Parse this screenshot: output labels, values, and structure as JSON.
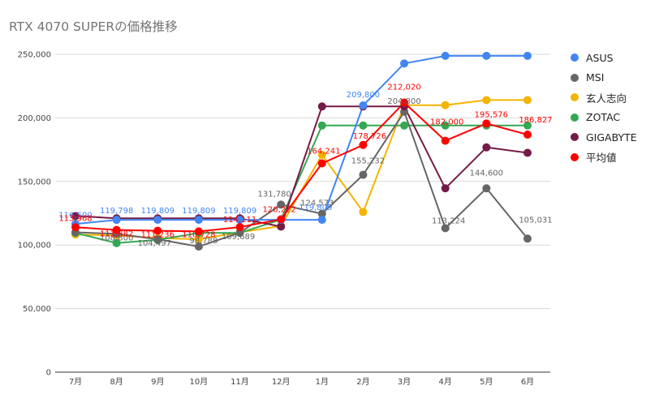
{
  "chart_data": {
    "type": "line",
    "title": "RTX 4070 SUPERの価格推移",
    "xlabel": "",
    "ylabel": "",
    "ylim": [
      0,
      250000
    ],
    "y_ticks": [
      "0",
      "50,000",
      "100,000",
      "150,000",
      "200,000",
      "250,000"
    ],
    "y_tick_values": [
      0,
      50000,
      100000,
      150000,
      200000,
      250000
    ],
    "grid": true,
    "legend_position": "right",
    "categories": [
      "7月",
      "8月",
      "9月",
      "10月",
      "11月",
      "12月",
      "1月",
      "2月",
      "3月",
      "4月",
      "5月",
      "6月"
    ],
    "series": [
      {
        "name": "ASUS",
        "color": "#4285f4",
        "values": [
          116500,
          119798,
          119809,
          119809,
          119809,
          119809,
          119809,
          209800,
          242800,
          248800,
          248800,
          248800
        ],
        "labels": [
          "116,500",
          "119,798",
          "119,809",
          "119,809",
          "119,809",
          "",
          "119,809",
          "209,800",
          "",
          "",
          "",
          ""
        ]
      },
      {
        "name": "MSI",
        "color": "#666666",
        "values": [
          110000,
          108800,
          104497,
          98788,
          109689,
          131780,
          124573,
          155232,
          204800,
          113224,
          144600,
          105031
        ],
        "labels": [
          "",
          "108,800",
          "104,497",
          "98,788",
          "109,689",
          "131,780",
          "124,573",
          "155,232",
          "204,800",
          "113,224",
          "144,600",
          "105,031"
        ]
      },
      {
        "name": "玄人志向",
        "color": "#f4b400",
        "values": [
          108300,
          107500,
          105500,
          104500,
          110000,
          115000,
          171000,
          126000,
          210000,
          210000,
          214000,
          214000
        ],
        "labels": [
          "",
          "",
          "",
          "",
          "",
          "",
          "",
          "",
          "",
          "",
          "",
          ""
        ]
      },
      {
        "name": "ZOTAC",
        "color": "#34a853",
        "values": [
          109500,
          101500,
          104000,
          109500,
          109500,
          120000,
          194000,
          194000,
          194000,
          194000,
          194000,
          194000
        ],
        "labels": [
          "",
          "",
          "",
          "",
          "",
          "",
          "",
          "",
          "",
          "",
          "",
          ""
        ]
      },
      {
        "name": "GIGABYTE",
        "color": "#741b47",
        "values": [
          122800,
          121000,
          121000,
          121000,
          121000,
          114500,
          209000,
          209000,
          209000,
          144600,
          176800,
          172500
        ],
        "labels": [
          "",
          "",
          "",
          "",
          "",
          "",
          "",
          "",
          "",
          "",
          "",
          ""
        ]
      },
      {
        "name": "平均値",
        "color": "#ff0000",
        "values": [
          113968,
          111882,
          111236,
          110728,
          114111,
          120222,
          164241,
          178726,
          212020,
          182000,
          195576,
          186827
        ],
        "labels": [
          "113,968",
          "111,882",
          "111,236",
          "110,728",
          "114,111",
          "120,222",
          "164,241",
          "178,726",
          "212,020",
          "182,000",
          "195,576",
          "186,827"
        ]
      }
    ]
  }
}
